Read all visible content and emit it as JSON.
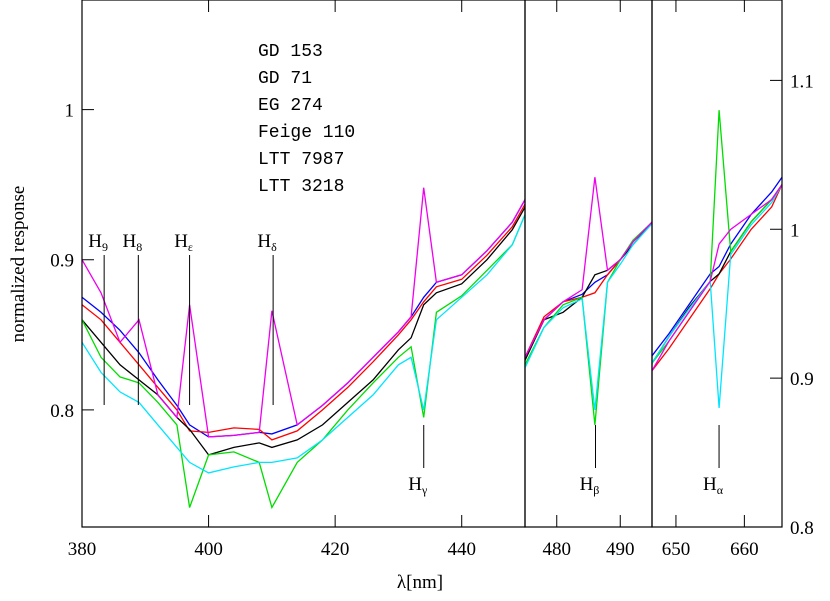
{
  "chart_data": [
    {
      "type": "line",
      "xlabel": "λ[nm]",
      "ylabel": "normalized response",
      "xlim": [
        380,
        450
      ],
      "xticks": [
        380,
        400,
        420,
        440
      ],
      "ylim": [
        0.722,
        1.073
      ],
      "yticks": [
        0.8,
        0.9,
        1
      ],
      "x": [
        380,
        383,
        386,
        389,
        392,
        395,
        397,
        400,
        404,
        408,
        410,
        414,
        418,
        422,
        426,
        430,
        432,
        434,
        436,
        440,
        444,
        448,
        450
      ],
      "series": [
        {
          "name": "GD 153",
          "color": "#0000ff",
          "values": [
            0.875,
            0.865,
            0.853,
            0.838,
            0.82,
            0.803,
            0.79,
            0.782,
            0.783,
            0.785,
            0.784,
            0.79,
            0.803,
            0.818,
            0.835,
            0.852,
            0.862,
            0.875,
            0.885,
            0.89,
            0.906,
            0.925,
            0.94
          ]
        },
        {
          "name": "GD 71",
          "color": "#ff0000",
          "values": [
            0.87,
            0.86,
            0.845,
            0.83,
            0.815,
            0.8,
            0.786,
            0.785,
            0.788,
            0.787,
            0.78,
            0.786,
            0.8,
            0.815,
            0.832,
            0.85,
            0.86,
            0.872,
            0.882,
            0.887,
            0.903,
            0.922,
            0.937
          ]
        },
        {
          "name": "EG 274",
          "color": "#000000",
          "values": [
            0.86,
            0.845,
            0.83,
            0.82,
            0.81,
            0.795,
            0.787,
            0.77,
            0.775,
            0.778,
            0.775,
            0.78,
            0.79,
            0.805,
            0.82,
            0.84,
            0.848,
            0.87,
            0.878,
            0.884,
            0.9,
            0.92,
            0.935
          ]
        },
        {
          "name": "Feige 110",
          "color": "#00dd00",
          "values": [
            0.86,
            0.835,
            0.822,
            0.818,
            0.805,
            0.79,
            0.735,
            0.77,
            0.772,
            0.765,
            0.735,
            0.765,
            0.78,
            0.8,
            0.818,
            0.835,
            0.842,
            0.795,
            0.865,
            0.876,
            0.893,
            0.91,
            0.93
          ]
        },
        {
          "name": "LTT 7987",
          "color": "#00e5ff",
          "values": [
            0.845,
            0.825,
            0.812,
            0.805,
            0.79,
            0.775,
            0.765,
            0.758,
            0.762,
            0.765,
            0.765,
            0.768,
            0.78,
            0.795,
            0.81,
            0.83,
            0.835,
            0.8,
            0.86,
            0.875,
            0.89,
            0.91,
            0.93
          ]
        },
        {
          "name": "LTT 3218",
          "color": "#ee00ee",
          "values": [
            0.9,
            0.878,
            0.845,
            0.86,
            0.81,
            0.795,
            0.87,
            0.782,
            0.783,
            0.785,
            0.866,
            0.79,
            0.803,
            0.818,
            0.835,
            0.852,
            0.862,
            0.948,
            0.885,
            0.89,
            0.906,
            0.925,
            0.94
          ]
        }
      ],
      "annotations": [
        {
          "label": "H",
          "sub": "9",
          "x": 383.5
        },
        {
          "label": "H",
          "sub": "8",
          "x": 388.9
        },
        {
          "label": "H",
          "sub": "ε",
          "x": 397
        },
        {
          "label": "H",
          "sub": "δ",
          "x": 410.2
        },
        {
          "label": "H",
          "sub": "γ",
          "x": 434
        }
      ]
    },
    {
      "type": "line",
      "xlim": [
        475,
        495
      ],
      "xticks": [
        480,
        490
      ],
      "ylim": [
        0.722,
        1.073
      ],
      "x": [
        475,
        478,
        481,
        484,
        486,
        488,
        490,
        492,
        495
      ],
      "series": [
        {
          "color": "#0000ff",
          "values": [
            0.835,
            0.86,
            0.872,
            0.877,
            0.885,
            0.89,
            0.9,
            0.912,
            0.925
          ]
        },
        {
          "color": "#ff0000",
          "values": [
            0.835,
            0.862,
            0.872,
            0.875,
            0.878,
            0.89,
            0.9,
            0.912,
            0.925
          ]
        },
        {
          "color": "#000000",
          "values": [
            0.833,
            0.86,
            0.865,
            0.875,
            0.89,
            0.893,
            0.9,
            0.91,
            0.925
          ]
        },
        {
          "color": "#00dd00",
          "values": [
            0.83,
            0.855,
            0.87,
            0.875,
            0.79,
            0.885,
            0.9,
            0.913,
            0.925
          ]
        },
        {
          "color": "#00e5ff",
          "values": [
            0.828,
            0.855,
            0.868,
            0.874,
            0.8,
            0.885,
            0.897,
            0.91,
            0.924
          ]
        },
        {
          "color": "#ee00ee",
          "values": [
            0.835,
            0.86,
            0.872,
            0.88,
            0.955,
            0.893,
            0.9,
            0.912,
            0.925
          ]
        }
      ],
      "annotations": [
        {
          "label": "H",
          "sub": "β",
          "x": 486.1
        }
      ]
    },
    {
      "type": "line",
      "xlim": [
        646.5,
        665.5
      ],
      "xticks": [
        650,
        660
      ],
      "y2lim": [
        0.8,
        1.154
      ],
      "y2ticks": [
        0.8,
        0.9,
        1,
        1.1
      ],
      "x": [
        646.5,
        649,
        652,
        655,
        656.3,
        658,
        661,
        664,
        665.5
      ],
      "series": [
        {
          "color": "#0000ff",
          "axis": "y2",
          "values": [
            0.915,
            0.93,
            0.95,
            0.97,
            0.975,
            0.99,
            1.01,
            1.025,
            1.035
          ]
        },
        {
          "color": "#ff0000",
          "axis": "y2",
          "values": [
            0.905,
            0.92,
            0.94,
            0.96,
            0.97,
            0.98,
            1.0,
            1.015,
            1.03
          ]
        },
        {
          "color": "#000000",
          "axis": "y2",
          "values": [
            0.91,
            0.928,
            0.948,
            0.965,
            0.97,
            0.985,
            1.005,
            1.02,
            1.03
          ]
        },
        {
          "color": "#00dd00",
          "axis": "y2",
          "values": [
            0.91,
            0.925,
            0.945,
            0.965,
            1.08,
            0.985,
            1.005,
            1.02,
            1.03
          ]
        },
        {
          "color": "#00e5ff",
          "axis": "y2",
          "values": [
            0.91,
            0.928,
            0.947,
            0.965,
            0.88,
            0.983,
            1.003,
            1.018,
            1.03
          ]
        },
        {
          "color": "#ee00ee",
          "axis": "y2",
          "values": [
            0.905,
            0.925,
            0.945,
            0.965,
            0.99,
            1.0,
            1.01,
            1.02,
            1.03
          ]
        }
      ],
      "annotations": [
        {
          "label": "H",
          "sub": "α",
          "x": 656.3
        }
      ]
    }
  ]
}
